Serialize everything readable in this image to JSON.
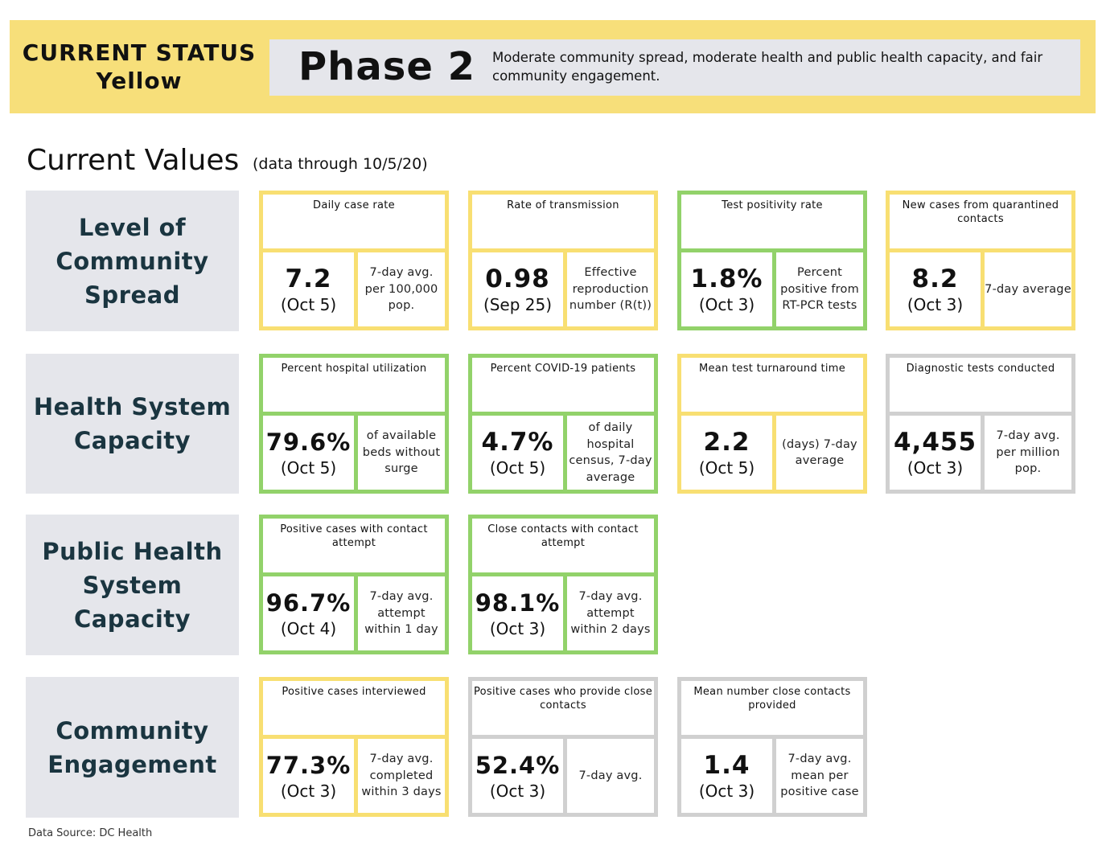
{
  "colors": {
    "banner": "#f7df7a",
    "panel": "#e5e6eb",
    "label_text": "#1a3540",
    "yellow": "#f8df72",
    "green": "#92d26a",
    "gray": "#d0d0d0"
  },
  "header": {
    "status_line1": "CURRENT STATUS",
    "status_line2": "Yellow",
    "phase": "Phase 2",
    "description": "Moderate community spread, moderate health and public health capacity, and fair community engagement."
  },
  "section": {
    "title": "Current Values",
    "note": "(data through 10/5/20)"
  },
  "rows": [
    {
      "label": "Level of Community Spread",
      "cards": [
        {
          "title": "Daily case rate",
          "value": "7.2",
          "date": "(Oct 5)",
          "desc": "7-day avg. per 100,000 pop.",
          "status": "yellow"
        },
        {
          "title": "Rate of transmission",
          "value": "0.98",
          "date": "(Sep 25)",
          "desc": "Effective reproduction number (R(t))",
          "status": "yellow"
        },
        {
          "title": "Test positivity rate",
          "value": "1.8%",
          "date": "(Oct 3)",
          "desc": "Percent positive from RT-PCR tests",
          "status": "green"
        },
        {
          "title": "New cases from quarantined contacts",
          "value": "8.2",
          "date": "(Oct 3)",
          "desc": "7-day average",
          "status": "yellow"
        }
      ]
    },
    {
      "label": "Health System Capacity",
      "cards": [
        {
          "title": "Percent hospital utilization",
          "value": "79.6%",
          "date": "(Oct 5)",
          "desc": "of available beds without surge",
          "status": "green"
        },
        {
          "title": "Percent COVID-19 patients",
          "value": "4.7%",
          "date": "(Oct 5)",
          "desc": "of daily hospital census, 7-day average",
          "status": "green"
        },
        {
          "title": "Mean test turnaround time",
          "value": "2.2",
          "date": "(Oct 5)",
          "desc": "(days) 7-day average",
          "status": "yellow"
        },
        {
          "title": "Diagnostic tests conducted",
          "value": "4,455",
          "date": "(Oct 3)",
          "desc": "7-day avg. per million pop.",
          "status": "gray"
        }
      ]
    },
    {
      "label": "Public Health System Capacity",
      "cards": [
        {
          "title": "Positive cases with contact attempt",
          "value": "96.7%",
          "date": "(Oct 4)",
          "desc": "7-day avg. attempt within 1 day",
          "status": "green"
        },
        {
          "title": "Close contacts with contact attempt",
          "value": "98.1%",
          "date": "(Oct 3)",
          "desc": "7-day avg. attempt within 2 days",
          "status": "green"
        }
      ]
    },
    {
      "label": "Community Engagement",
      "cards": [
        {
          "title": "Positive cases interviewed",
          "value": "77.3%",
          "date": "(Oct 3)",
          "desc": "7-day avg. completed within 3 days",
          "status": "yellow"
        },
        {
          "title": "Positive cases who provide close contacts",
          "value": "52.4%",
          "date": "(Oct 3)",
          "desc": "7-day avg.",
          "status": "gray"
        },
        {
          "title": "Mean number close contacts provided",
          "value": "1.4",
          "date": "(Oct 3)",
          "desc": "7-day avg. mean per positive case",
          "status": "gray"
        }
      ]
    }
  ],
  "footer": {
    "source": "Data Source: DC Health"
  }
}
